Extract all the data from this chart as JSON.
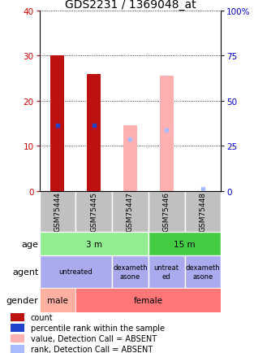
{
  "title": "GDS2231 / 1369048_at",
  "samples": [
    "GSM75444",
    "GSM75445",
    "GSM75447",
    "GSM75446",
    "GSM75448"
  ],
  "red_bars": [
    30,
    26,
    0,
    0,
    0
  ],
  "blue_markers": [
    14.5,
    14.5,
    0,
    0,
    0
  ],
  "pink_bars": [
    0,
    0,
    14.5,
    25.5,
    0
  ],
  "light_blue_markers": [
    0,
    0,
    11.5,
    13.5,
    0.5
  ],
  "ylim_left": [
    0,
    40
  ],
  "ylim_right": [
    0,
    100
  ],
  "yticks_left": [
    0,
    10,
    20,
    30,
    40
  ],
  "yticks_right": [
    0,
    25,
    50,
    75,
    100
  ],
  "age_data": [
    [
      "3 m",
      0,
      3,
      "#90EE90"
    ],
    [
      "15 m",
      3,
      5,
      "#44CC44"
    ]
  ],
  "agent_data": [
    [
      "untreated",
      0,
      2,
      "#AAAAEE"
    ],
    [
      "dexameth\nasone",
      2,
      3,
      "#AAAAEE"
    ],
    [
      "untreat\ned",
      3,
      4,
      "#AAAAEE"
    ],
    [
      "dexameth\nasone",
      4,
      5,
      "#AAAAEE"
    ]
  ],
  "gender_data": [
    [
      "male",
      0,
      1,
      "#FFB0A0"
    ],
    [
      "female",
      1,
      5,
      "#FF7777"
    ]
  ],
  "red_color": "#BB1111",
  "pink_color": "#FFB0B0",
  "blue_color": "#2244CC",
  "light_blue_color": "#AABBFF",
  "sample_bg_color": "#C0C0C0",
  "label_color_left": "#CC0000",
  "label_color_right": "#0000CC",
  "title_fontsize": 10,
  "tick_fontsize": 7.5,
  "legend_fontsize": 7,
  "row_label_fontsize": 8,
  "cell_text_fontsize": 7.5,
  "sample_fontsize": 6.5
}
